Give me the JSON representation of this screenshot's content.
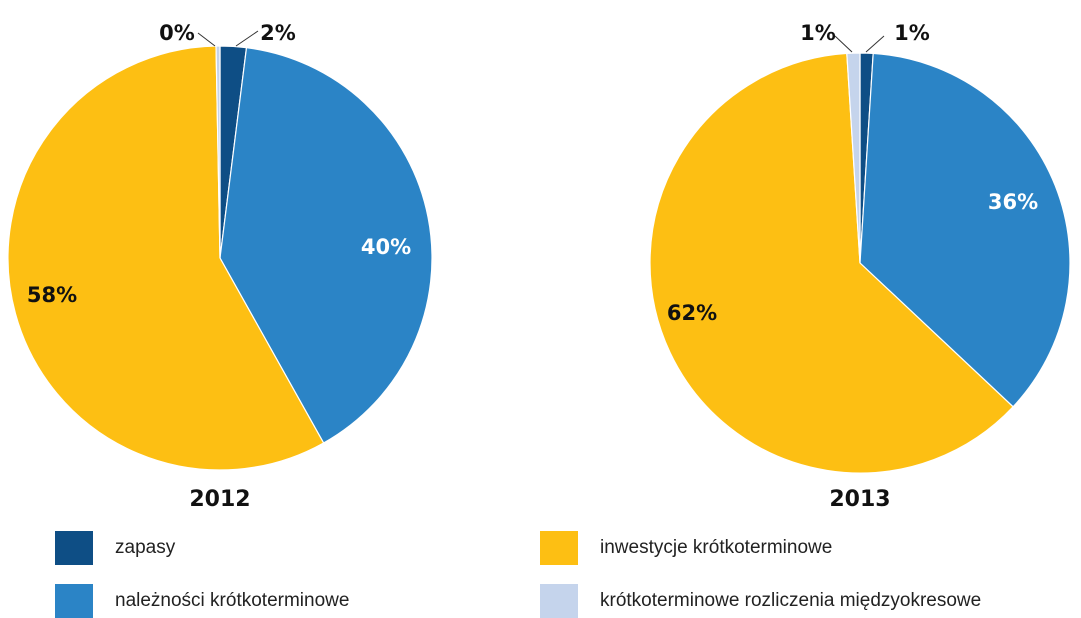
{
  "chart_data": [
    {
      "type": "pie",
      "title": "2012",
      "slices": [
        {
          "label": "zapasy",
          "value": 2,
          "display": "2%",
          "color": "#0e4e85"
        },
        {
          "label": "należności krótkoterminowe",
          "value": 40,
          "display": "40%",
          "color": "#2b84c6"
        },
        {
          "label": "inwestycje krótkoterminowe",
          "value": 58,
          "display": "58%",
          "color": "#fdbf13"
        },
        {
          "label": "krótkoterminowe rozliczenia międzyokresowe",
          "value": 0.3,
          "display": "0%",
          "color": "#c5d4ec"
        }
      ]
    },
    {
      "type": "pie",
      "title": "2013",
      "slices": [
        {
          "label": "zapasy",
          "value": 1,
          "display": "1%",
          "color": "#0e4e85"
        },
        {
          "label": "należności krótkoterminowe",
          "value": 36,
          "display": "36%",
          "color": "#2b84c6"
        },
        {
          "label": "inwestycje krótkoterminowe",
          "value": 62,
          "display": "62%",
          "color": "#fdbf13"
        },
        {
          "label": "krótkoterminowe rozliczenia międzyokresowe",
          "value": 1,
          "display": "1%",
          "color": "#c5d4ec"
        }
      ]
    }
  ],
  "legend": [
    {
      "label": "zapasy",
      "color": "#0e4e85"
    },
    {
      "label": "inwestycje krótkoterminowe",
      "color": "#fdbf13"
    },
    {
      "label": "należności krótkoterminowe",
      "color": "#2b84c6"
    },
    {
      "label": "krótkoterminowe rozliczenia międzyokresowe",
      "color": "#c5d4ec"
    }
  ]
}
